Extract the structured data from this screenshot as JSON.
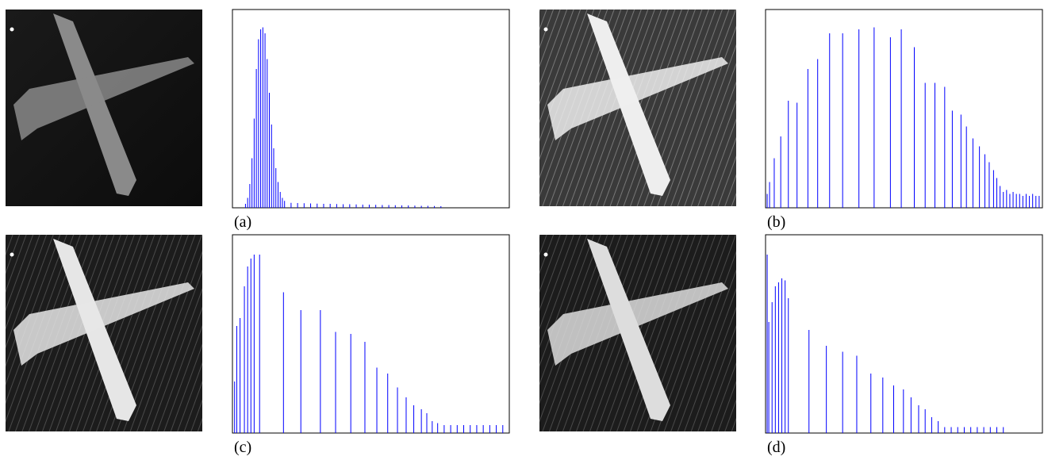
{
  "chart_data": [
    {
      "type": "stem",
      "caption": "(a)",
      "color": "#0000ff",
      "xlim": [
        0,
        255
      ],
      "ylim": [
        0,
        100
      ],
      "x": [
        12,
        14,
        16,
        18,
        20,
        22,
        24,
        26,
        28,
        30,
        32,
        34,
        36,
        38,
        40,
        42,
        44,
        46,
        48,
        54,
        60,
        66,
        72,
        78,
        84,
        90,
        96,
        102,
        108,
        114,
        120,
        126,
        132,
        138,
        144,
        150,
        156,
        162,
        168,
        174,
        180,
        186,
        192
      ],
      "values": [
        2,
        5,
        12,
        25,
        45,
        70,
        85,
        90,
        91,
        88,
        75,
        58,
        42,
        30,
        20,
        13,
        8,
        5,
        3.5,
        2.5,
        2.4,
        2.3,
        2.2,
        2.1,
        2,
        2,
        1.9,
        1.8,
        1.8,
        1.7,
        1.6,
        1.6,
        1.5,
        1.4,
        1.4,
        1.3,
        1.2,
        1.2,
        1.1,
        1,
        1,
        0.9,
        0.8
      ]
    },
    {
      "type": "stem",
      "caption": "(b)",
      "color": "#0000ff",
      "xlim": [
        0,
        255
      ],
      "ylim": [
        0,
        100
      ],
      "x": [
        1.5,
        3.7,
        8,
        14,
        21,
        29,
        39,
        48,
        59,
        71,
        86,
        100,
        115,
        125,
        137,
        147,
        156,
        165,
        172,
        180,
        185,
        191,
        197,
        202,
        206,
        210,
        213,
        216,
        219,
        222,
        225,
        228,
        231,
        234,
        237,
        240,
        243,
        246,
        249,
        252
      ],
      "values": [
        7,
        13,
        25,
        36,
        54,
        53,
        70,
        75,
        88,
        88,
        90,
        91,
        86,
        90,
        81,
        63,
        63,
        61,
        49,
        47,
        41,
        35,
        31,
        27,
        23,
        19,
        15,
        11,
        8,
        9,
        7,
        8,
        7,
        7,
        6,
        7,
        6,
        7,
        6,
        6
      ]
    },
    {
      "type": "stem",
      "caption": "(c)",
      "color": "#0000ff",
      "xlim": [
        0,
        255
      ],
      "ylim": [
        0,
        100
      ],
      "x": [
        2,
        4,
        7,
        11,
        14,
        17,
        20,
        25,
        47,
        63,
        81,
        95,
        109,
        122,
        133,
        143,
        152,
        160,
        167,
        174,
        179,
        184,
        189,
        195,
        201,
        207,
        213,
        219,
        225,
        231,
        237,
        243,
        249
      ],
      "values": [
        26,
        54,
        58,
        74,
        84,
        88,
        90,
        90,
        71,
        62,
        62,
        51,
        50,
        46,
        33,
        30,
        23,
        18,
        14,
        12,
        10,
        6,
        5,
        4,
        4,
        4,
        4,
        4,
        4,
        4,
        4,
        4,
        4
      ]
    },
    {
      "type": "stem",
      "caption": "(d)",
      "color": "#0000ff",
      "xlim": [
        0,
        255
      ],
      "ylim": [
        0,
        100
      ],
      "x": [
        1.5,
        3,
        6,
        9,
        12,
        15,
        18,
        21,
        40,
        56,
        71,
        84,
        97,
        108,
        118,
        127,
        134,
        141,
        147,
        153,
        159,
        165,
        171,
        177,
        183,
        189,
        195,
        201,
        207,
        213,
        219
      ],
      "values": [
        90,
        56,
        66,
        74,
        76,
        78,
        77,
        68,
        52,
        44,
        41,
        39,
        30,
        28,
        24,
        22,
        18,
        14,
        12,
        8,
        6,
        3,
        3,
        3,
        3,
        3,
        3,
        3,
        3,
        3,
        3
      ]
    }
  ]
}
